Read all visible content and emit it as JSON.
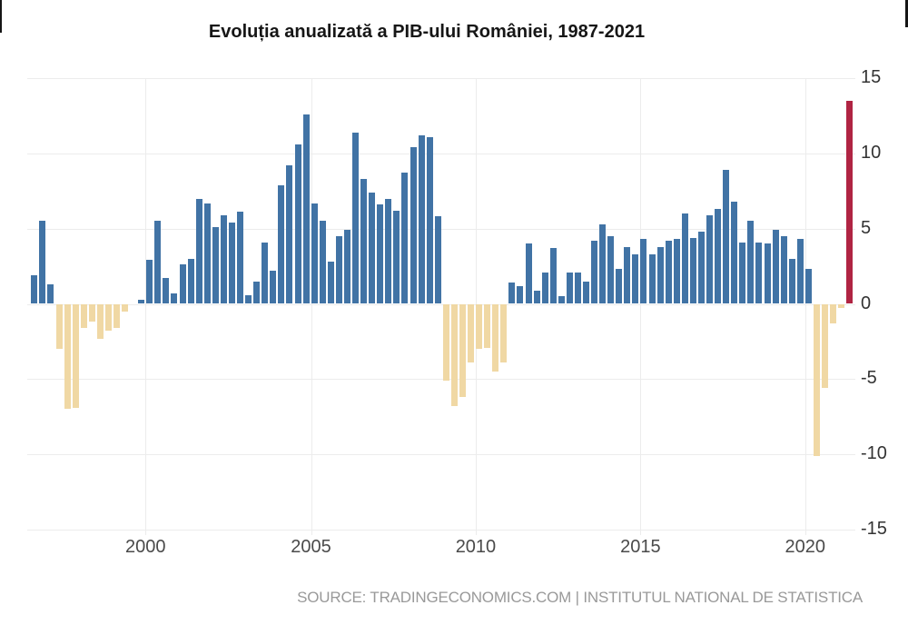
{
  "page": {
    "title": "Evoluția anualizată a PIB-ului României, 1987-2021",
    "source_line": "SOURCE: TRADINGECONOMICS.COM | INSTITUTUL NATIONAL DE STATISTICA"
  },
  "chart_data": {
    "type": "bar",
    "title": "Evoluția anualizată a PIB-ului României, 1987-2021",
    "subtitle": "",
    "xlabel": "",
    "ylabel": "",
    "unit": "percent",
    "ylim": [
      -15,
      15
    ],
    "y_ticks": [
      15,
      10,
      5,
      0,
      -5,
      -10,
      -15
    ],
    "x_tick_labels": [
      "2000",
      "2005",
      "2010",
      "2015",
      "2020"
    ],
    "x_tick_bar_indices": [
      13.5,
      33.6,
      53.6,
      73.6,
      93.6
    ],
    "frequency": "quarterly",
    "grid": true,
    "legend": "none",
    "values": [
      1.9,
      5.5,
      1.3,
      -3.0,
      -7.0,
      -6.9,
      -1.6,
      -1.2,
      -2.3,
      -1.8,
      -1.6,
      -0.5,
      0.0,
      0.3,
      2.9,
      5.5,
      1.7,
      0.7,
      2.6,
      3.0,
      7.0,
      6.7,
      5.1,
      5.9,
      5.4,
      6.1,
      0.6,
      1.5,
      4.1,
      2.2,
      7.9,
      9.2,
      10.6,
      12.6,
      6.7,
      5.5,
      2.8,
      4.5,
      4.9,
      11.4,
      8.3,
      7.4,
      6.6,
      7.0,
      6.2,
      8.7,
      10.4,
      11.2,
      11.1,
      5.8,
      -5.1,
      -6.8,
      -6.2,
      -3.9,
      -3.0,
      -2.9,
      -4.5,
      -3.9,
      1.4,
      1.2,
      4.0,
      0.9,
      2.1,
      3.7,
      0.5,
      2.1,
      2.1,
      1.5,
      4.2,
      5.3,
      4.5,
      2.3,
      3.8,
      3.3,
      4.3,
      3.3,
      3.8,
      4.2,
      4.3,
      6.0,
      4.4,
      4.8,
      5.9,
      6.3,
      8.9,
      6.8,
      4.1,
      5.5,
      4.1,
      4.0,
      4.9,
      4.5,
      3.0,
      4.3,
      2.3,
      -10.1,
      -5.6,
      -1.3,
      -0.3,
      13.5
    ],
    "highlight_index": 99,
    "colors": {
      "positive": "#4173a5",
      "negative": "#f0d8a4",
      "highlight": "#b02443",
      "grid": "#ececec",
      "axis_text": "#3d3d3d",
      "title_text": "#161616",
      "source_text": "#999999"
    }
  }
}
